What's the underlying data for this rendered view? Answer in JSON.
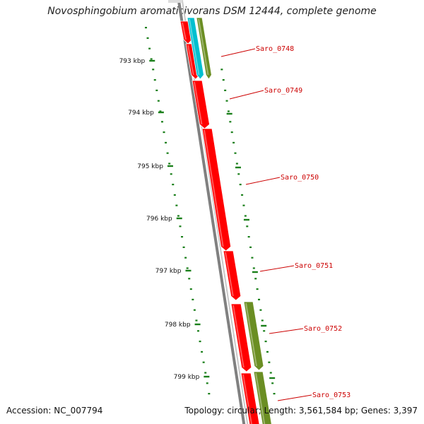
{
  "title": "Novosphingobium aromaticivorans DSM 12444, complete genome",
  "footer": {
    "accession": "Accession: NC_007794",
    "summary": "Topology: circular; Length: 3,561,584 bp; Genes: 3,397"
  },
  "colors": {
    "cds_feature": "#ff0000",
    "orf_feature": "#6b8e23",
    "rna_feature": "#00bfcf",
    "backbone": "#808080",
    "ticks": "#1a7f1a",
    "gene_label": "#cc0000"
  },
  "axis": {
    "unit_labels": [
      "793 kbp",
      "794 kbp",
      "795 kbp",
      "796 kbp",
      "797 kbp",
      "798 kbp",
      "799 kbp"
    ]
  },
  "gene_labels": [
    "Saro_0748",
    "Saro_0749",
    "Saro_0750",
    "Saro_0751",
    "Saro_0752",
    "Saro_0753"
  ]
}
